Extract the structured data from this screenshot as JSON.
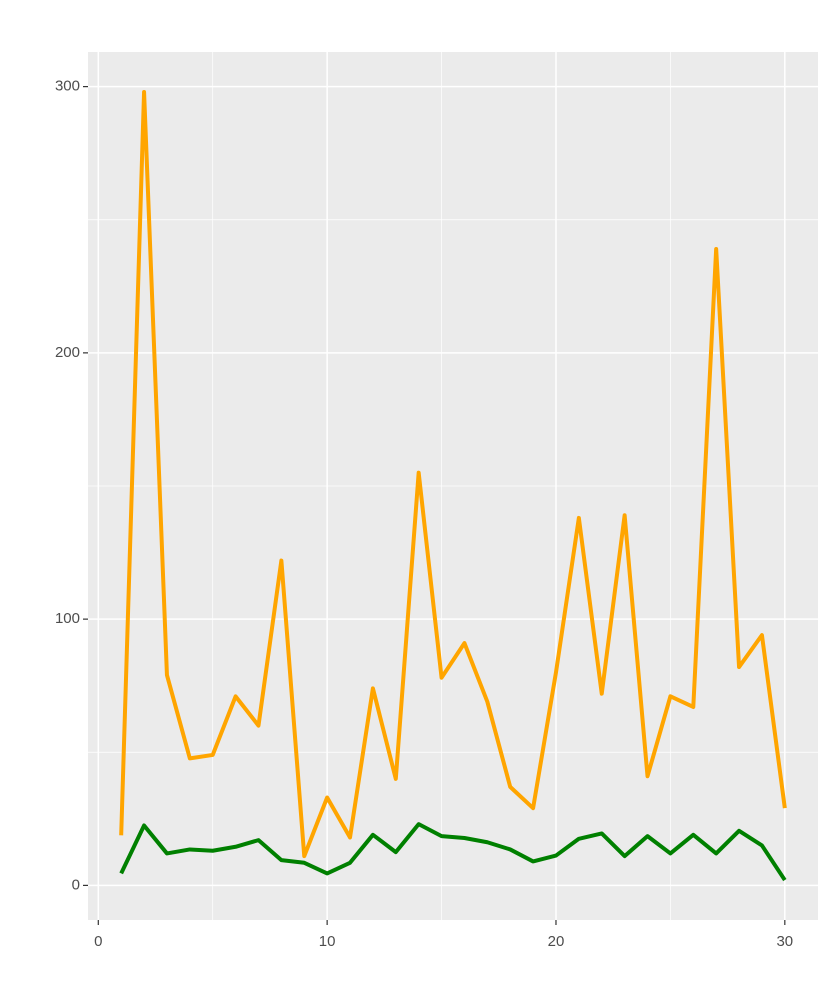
{
  "chart_data": {
    "type": "line",
    "x": [
      1,
      2,
      3,
      4,
      5,
      6,
      7,
      8,
      9,
      10,
      11,
      12,
      13,
      14,
      15,
      16,
      17,
      18,
      19,
      20,
      21,
      22,
      23,
      24,
      25,
      26,
      27,
      28,
      29,
      30
    ],
    "series": [
      {
        "color": "#ffa500",
        "values": [
          18.8,
          298,
          79,
          47.7,
          49,
          71,
          60,
          122,
          11,
          33,
          18,
          74,
          40,
          155,
          78,
          91,
          69,
          37,
          29,
          80,
          138,
          72,
          139,
          41,
          71,
          67,
          239,
          82,
          94,
          29
        ]
      },
      {
        "color": "#008000",
        "values": [
          4.5,
          22.5,
          12,
          13.5,
          13,
          14.5,
          17,
          9.5,
          8.5,
          4.5,
          8.5,
          19,
          12.5,
          23,
          18.5,
          17.8,
          16.2,
          13.5,
          9,
          11.2,
          17.5,
          19.5,
          11,
          18.5,
          12,
          19,
          12,
          20.5,
          15,
          2
        ]
      }
    ],
    "xlim": [
      -0.45,
      31.45
    ],
    "ylim": [
      -13,
      313
    ],
    "xticks": [
      0,
      10,
      20,
      30
    ],
    "yticks": [
      0,
      100,
      200,
      300
    ],
    "grid": true,
    "minor_grid": true
  }
}
